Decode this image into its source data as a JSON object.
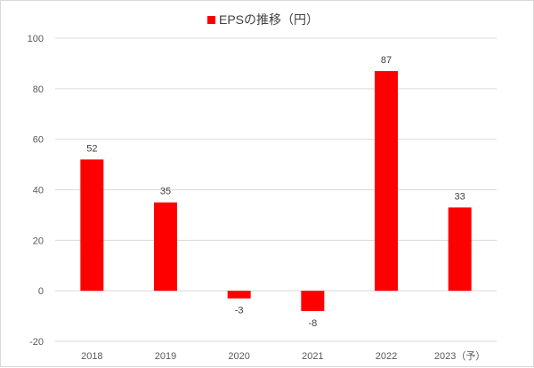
{
  "chart_data": {
    "type": "bar",
    "title": "",
    "legend": {
      "position": "top",
      "entries": [
        "EPSの推移（円）"
      ]
    },
    "categories": [
      "2018",
      "2019",
      "2020",
      "2021",
      "2022",
      "2023（予）"
    ],
    "series": [
      {
        "name": "EPSの推移（円）",
        "values": [
          52,
          35,
          -3,
          -8,
          87,
          33
        ],
        "color": "#ff0000"
      }
    ],
    "data_labels": [
      "52",
      "35",
      "-3",
      "-8",
      "87",
      "33"
    ],
    "y_ticks": [
      "100",
      "80",
      "60",
      "40",
      "20",
      "0",
      "-20"
    ],
    "ylim": [
      -20,
      100
    ],
    "grid": true,
    "xlabel": "",
    "ylabel": ""
  }
}
